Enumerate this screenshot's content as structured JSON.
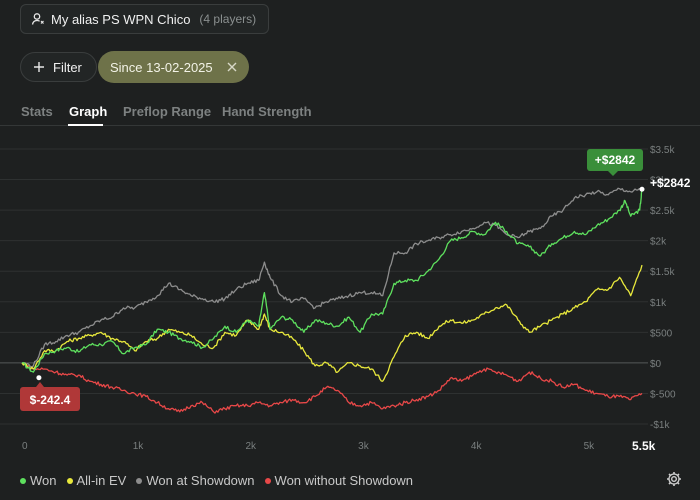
{
  "header": {
    "player_name": "My alias PS WPN Chico",
    "player_count": "(4 players)"
  },
  "filters": {
    "filter_label": "Filter",
    "date_label": "Since 13-02-2025"
  },
  "tabs": [
    {
      "label": "Stats",
      "active": false
    },
    {
      "label": "Graph",
      "active": true
    },
    {
      "label": "Preflop Range",
      "active": false
    },
    {
      "label": "Hand Strength",
      "active": false
    }
  ],
  "chart_data": {
    "type": "line",
    "x_ticks": [
      "0",
      "1k",
      "2k",
      "3k",
      "4k",
      "5k"
    ],
    "x_end_label": "5.5k",
    "y_ticks": [
      "-$1k",
      "$-500",
      "$0",
      "$500",
      "$1k",
      "$1.5k",
      "$2k",
      "$2.5k",
      "$3k",
      "$3.5k"
    ],
    "xlim": [
      0,
      5500
    ],
    "ylim": [
      -1000,
      3500
    ],
    "labels": {
      "max_badge": "+$2842",
      "max_end_label": "+$2842",
      "min_badge": "$-242.4"
    },
    "series": [
      {
        "name": "Won",
        "color": "#5ee05e",
        "points": [
          [
            0,
            0
          ],
          [
            100,
            -150
          ],
          [
            200,
            150
          ],
          [
            300,
            200
          ],
          [
            400,
            250
          ],
          [
            500,
            180
          ],
          [
            600,
            300
          ],
          [
            700,
            300
          ],
          [
            800,
            350
          ],
          [
            900,
            150
          ],
          [
            1000,
            250
          ],
          [
            1100,
            300
          ],
          [
            1200,
            550
          ],
          [
            1300,
            500
          ],
          [
            1400,
            400
          ],
          [
            1500,
            350
          ],
          [
            1600,
            250
          ],
          [
            1700,
            400
          ],
          [
            1800,
            600
          ],
          [
            1900,
            500
          ],
          [
            2000,
            700
          ],
          [
            2100,
            600
          ],
          [
            2150,
            1150
          ],
          [
            2200,
            550
          ],
          [
            2300,
            750
          ],
          [
            2400,
            700
          ],
          [
            2500,
            500
          ],
          [
            2600,
            700
          ],
          [
            2700,
            650
          ],
          [
            2800,
            600
          ],
          [
            2900,
            750
          ],
          [
            3000,
            500
          ],
          [
            3100,
            800
          ],
          [
            3200,
            800
          ],
          [
            3300,
            1300
          ],
          [
            3400,
            1350
          ],
          [
            3500,
            1350
          ],
          [
            3600,
            1500
          ],
          [
            3700,
            1700
          ],
          [
            3800,
            2000
          ],
          [
            3900,
            2050
          ],
          [
            4000,
            2150
          ],
          [
            4100,
            2100
          ],
          [
            4200,
            2300
          ],
          [
            4300,
            2150
          ],
          [
            4400,
            1950
          ],
          [
            4500,
            1900
          ],
          [
            4600,
            1750
          ],
          [
            4700,
            1950
          ],
          [
            4800,
            2050
          ],
          [
            4900,
            2150
          ],
          [
            5000,
            2100
          ],
          [
            5100,
            2250
          ],
          [
            5200,
            2350
          ],
          [
            5300,
            2500
          ],
          [
            5350,
            2650
          ],
          [
            5400,
            2400
          ],
          [
            5480,
            2500
          ],
          [
            5500,
            2842
          ]
        ]
      },
      {
        "name": "All-in EV",
        "color": "#e8e83c",
        "points": [
          [
            0,
            0
          ],
          [
            100,
            -100
          ],
          [
            200,
            200
          ],
          [
            300,
            200
          ],
          [
            400,
            350
          ],
          [
            500,
            400
          ],
          [
            600,
            450
          ],
          [
            700,
            500
          ],
          [
            800,
            400
          ],
          [
            900,
            350
          ],
          [
            1000,
            200
          ],
          [
            1100,
            350
          ],
          [
            1200,
            400
          ],
          [
            1300,
            550
          ],
          [
            1400,
            500
          ],
          [
            1500,
            450
          ],
          [
            1600,
            300
          ],
          [
            1700,
            250
          ],
          [
            1800,
            500
          ],
          [
            1900,
            450
          ],
          [
            2000,
            700
          ],
          [
            2100,
            550
          ],
          [
            2150,
            800
          ],
          [
            2200,
            550
          ],
          [
            2300,
            500
          ],
          [
            2400,
            400
          ],
          [
            2500,
            200
          ],
          [
            2600,
            -50
          ],
          [
            2700,
            0
          ],
          [
            2800,
            -150
          ],
          [
            2900,
            0
          ],
          [
            3000,
            -50
          ],
          [
            3100,
            -100
          ],
          [
            3200,
            -300
          ],
          [
            3300,
            100
          ],
          [
            3400,
            450
          ],
          [
            3500,
            500
          ],
          [
            3600,
            400
          ],
          [
            3700,
            600
          ],
          [
            3800,
            700
          ],
          [
            3900,
            650
          ],
          [
            4000,
            700
          ],
          [
            4100,
            800
          ],
          [
            4200,
            900
          ],
          [
            4300,
            950
          ],
          [
            4400,
            700
          ],
          [
            4500,
            500
          ],
          [
            4600,
            600
          ],
          [
            4700,
            700
          ],
          [
            4800,
            800
          ],
          [
            4900,
            900
          ],
          [
            5000,
            1000
          ],
          [
            5100,
            1200
          ],
          [
            5200,
            1200
          ],
          [
            5300,
            1400
          ],
          [
            5400,
            1100
          ],
          [
            5500,
            1600
          ]
        ]
      },
      {
        "name": "Won at Showdown",
        "color": "#8d8d8d",
        "points": [
          [
            0,
            0
          ],
          [
            100,
            -50
          ],
          [
            200,
            300
          ],
          [
            300,
            350
          ],
          [
            400,
            450
          ],
          [
            500,
            500
          ],
          [
            600,
            600
          ],
          [
            700,
            700
          ],
          [
            800,
            750
          ],
          [
            900,
            900
          ],
          [
            1000,
            900
          ],
          [
            1100,
            1000
          ],
          [
            1200,
            1100
          ],
          [
            1300,
            1300
          ],
          [
            1400,
            1200
          ],
          [
            1500,
            1100
          ],
          [
            1600,
            1050
          ],
          [
            1700,
            1000
          ],
          [
            1800,
            1050
          ],
          [
            1900,
            1200
          ],
          [
            2000,
            1300
          ],
          [
            2100,
            1350
          ],
          [
            2150,
            1650
          ],
          [
            2200,
            1400
          ],
          [
            2300,
            1100
          ],
          [
            2400,
            1000
          ],
          [
            2500,
            1050
          ],
          [
            2600,
            900
          ],
          [
            2700,
            1000
          ],
          [
            2800,
            1050
          ],
          [
            2900,
            1100
          ],
          [
            3000,
            1150
          ],
          [
            3100,
            1150
          ],
          [
            3200,
            1100
          ],
          [
            3300,
            1800
          ],
          [
            3400,
            1800
          ],
          [
            3500,
            1950
          ],
          [
            3600,
            2000
          ],
          [
            3700,
            2050
          ],
          [
            3800,
            2100
          ],
          [
            3900,
            2150
          ],
          [
            4000,
            2200
          ],
          [
            4100,
            2300
          ],
          [
            4200,
            2250
          ],
          [
            4300,
            2100
          ],
          [
            4400,
            2050
          ],
          [
            4500,
            2150
          ],
          [
            4600,
            2200
          ],
          [
            4700,
            2400
          ],
          [
            4800,
            2500
          ],
          [
            4900,
            2700
          ],
          [
            5000,
            2750
          ],
          [
            5100,
            2800
          ],
          [
            5200,
            2750
          ],
          [
            5300,
            2850
          ],
          [
            5400,
            2800
          ],
          [
            5500,
            2842
          ]
        ]
      },
      {
        "name": "Won without Showdown",
        "color": "#e84848",
        "points": [
          [
            0,
            0
          ],
          [
            100,
            -100
          ],
          [
            200,
            -100
          ],
          [
            300,
            -150
          ],
          [
            400,
            -200
          ],
          [
            500,
            -200
          ],
          [
            600,
            -300
          ],
          [
            700,
            -350
          ],
          [
            800,
            -400
          ],
          [
            900,
            -450
          ],
          [
            1000,
            -500
          ],
          [
            1100,
            -550
          ],
          [
            1200,
            -650
          ],
          [
            1300,
            -750
          ],
          [
            1400,
            -800
          ],
          [
            1500,
            -700
          ],
          [
            1600,
            -650
          ],
          [
            1700,
            -800
          ],
          [
            1800,
            -750
          ],
          [
            1900,
            -700
          ],
          [
            2000,
            -700
          ],
          [
            2100,
            -650
          ],
          [
            2200,
            -700
          ],
          [
            2300,
            -650
          ],
          [
            2400,
            -600
          ],
          [
            2500,
            -650
          ],
          [
            2600,
            -550
          ],
          [
            2700,
            -400
          ],
          [
            2800,
            -450
          ],
          [
            2900,
            -650
          ],
          [
            3000,
            -700
          ],
          [
            3100,
            -650
          ],
          [
            3200,
            -750
          ],
          [
            3300,
            -700
          ],
          [
            3400,
            -650
          ],
          [
            3500,
            -600
          ],
          [
            3600,
            -550
          ],
          [
            3700,
            -450
          ],
          [
            3800,
            -250
          ],
          [
            3900,
            -300
          ],
          [
            4000,
            -200
          ],
          [
            4100,
            -100
          ],
          [
            4200,
            -150
          ],
          [
            4300,
            -200
          ],
          [
            4400,
            -300
          ],
          [
            4500,
            -150
          ],
          [
            4600,
            -250
          ],
          [
            4700,
            -300
          ],
          [
            4800,
            -400
          ],
          [
            4900,
            -350
          ],
          [
            5000,
            -450
          ],
          [
            5100,
            -500
          ],
          [
            5200,
            -550
          ],
          [
            5300,
            -550
          ],
          [
            5400,
            -600
          ],
          [
            5500,
            -500
          ]
        ]
      }
    ]
  },
  "legend": [
    {
      "label": "Won",
      "color": "#5ee05e"
    },
    {
      "label": "All-in EV",
      "color": "#e8e83c"
    },
    {
      "label": "Won at Showdown",
      "color": "#8d8d8d"
    },
    {
      "label": "Won without Showdown",
      "color": "#e84848"
    }
  ],
  "icons": {
    "player": "person-icon",
    "filter": "plus-icon",
    "date_close": "close-icon",
    "settings": "gear-icon"
  }
}
